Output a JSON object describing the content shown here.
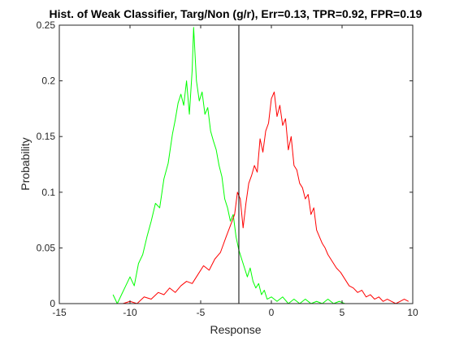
{
  "chart_data": {
    "type": "line",
    "title": "Hist. of Weak Classifier, Targ/Non (g/r), Err=0.13, TPR=0.92, FPR=0.19",
    "xlabel": "Response",
    "ylabel": "Probability",
    "xlim": [
      -15,
      10
    ],
    "ylim": [
      0,
      0.25
    ],
    "xticks": [
      -15,
      -10,
      -5,
      0,
      5,
      10
    ],
    "xtick_labels": [
      "-15",
      "-10",
      "-5",
      "0",
      "5",
      "10"
    ],
    "yticks": [
      0,
      0.05,
      0.1,
      0.15,
      0.2,
      0.25
    ],
    "ytick_labels": [
      "0",
      "0.05",
      "0.1",
      "0.15",
      "0.2",
      "0.25"
    ],
    "grid": false,
    "legend": "none",
    "threshold": {
      "x": -2.3,
      "color": "#000000"
    },
    "series": [
      {
        "key": "target",
        "color": "#00ff00",
        "points": [
          [
            -11.2,
            0.008
          ],
          [
            -10.9,
            0.0
          ],
          [
            -10.6,
            0.008
          ],
          [
            -10.3,
            0.016
          ],
          [
            -10.0,
            0.024
          ],
          [
            -9.7,
            0.016
          ],
          [
            -9.4,
            0.036
          ],
          [
            -9.1,
            0.044
          ],
          [
            -8.8,
            0.06
          ],
          [
            -8.5,
            0.074
          ],
          [
            -8.2,
            0.09
          ],
          [
            -7.9,
            0.086
          ],
          [
            -7.6,
            0.112
          ],
          [
            -7.3,
            0.126
          ],
          [
            -7.0,
            0.152
          ],
          [
            -6.8,
            0.165
          ],
          [
            -6.6,
            0.18
          ],
          [
            -6.4,
            0.188
          ],
          [
            -6.2,
            0.178
          ],
          [
            -6.0,
            0.2
          ],
          [
            -5.8,
            0.17
          ],
          [
            -5.6,
            0.21
          ],
          [
            -5.5,
            0.248
          ],
          [
            -5.3,
            0.2
          ],
          [
            -5.1,
            0.182
          ],
          [
            -4.9,
            0.19
          ],
          [
            -4.7,
            0.17
          ],
          [
            -4.5,
            0.176
          ],
          [
            -4.3,
            0.155
          ],
          [
            -4.1,
            0.146
          ],
          [
            -3.9,
            0.138
          ],
          [
            -3.7,
            0.124
          ],
          [
            -3.5,
            0.114
          ],
          [
            -3.3,
            0.094
          ],
          [
            -3.1,
            0.086
          ],
          [
            -2.9,
            0.074
          ],
          [
            -2.7,
            0.08
          ],
          [
            -2.5,
            0.06
          ],
          [
            -2.3,
            0.048
          ],
          [
            -2.1,
            0.04
          ],
          [
            -1.9,
            0.032
          ],
          [
            -1.7,
            0.024
          ],
          [
            -1.5,
            0.032
          ],
          [
            -1.3,
            0.02
          ],
          [
            -1.1,
            0.014
          ],
          [
            -0.9,
            0.018
          ],
          [
            -0.7,
            0.008
          ],
          [
            -0.5,
            0.012
          ],
          [
            -0.3,
            0.004
          ],
          [
            0.0,
            0.006
          ],
          [
            0.4,
            0.002
          ],
          [
            0.8,
            0.006
          ],
          [
            1.2,
            0.0
          ],
          [
            1.6,
            0.004
          ],
          [
            2.0,
            0.0
          ],
          [
            2.4,
            0.004
          ],
          [
            2.8,
            0.0
          ],
          [
            3.2,
            0.002
          ],
          [
            3.6,
            0.0
          ],
          [
            4.0,
            0.004
          ],
          [
            4.4,
            0.0
          ],
          [
            4.8,
            0.002
          ],
          [
            5.2,
            0.0
          ],
          [
            5.6,
            0.0
          ]
        ]
      },
      {
        "key": "nontarget",
        "color": "#ff0000",
        "points": [
          [
            -10.5,
            0.0
          ],
          [
            -10.0,
            0.002
          ],
          [
            -9.5,
            0.0
          ],
          [
            -9.0,
            0.006
          ],
          [
            -8.5,
            0.004
          ],
          [
            -8.0,
            0.01
          ],
          [
            -7.6,
            0.008
          ],
          [
            -7.2,
            0.014
          ],
          [
            -6.8,
            0.01
          ],
          [
            -6.4,
            0.016
          ],
          [
            -6.0,
            0.02
          ],
          [
            -5.6,
            0.018
          ],
          [
            -5.2,
            0.026
          ],
          [
            -4.8,
            0.034
          ],
          [
            -4.4,
            0.03
          ],
          [
            -4.0,
            0.04
          ],
          [
            -3.6,
            0.046
          ],
          [
            -3.2,
            0.06
          ],
          [
            -2.9,
            0.07
          ],
          [
            -2.6,
            0.08
          ],
          [
            -2.4,
            0.1
          ],
          [
            -2.2,
            0.094
          ],
          [
            -2.0,
            0.068
          ],
          [
            -1.8,
            0.09
          ],
          [
            -1.6,
            0.108
          ],
          [
            -1.4,
            0.115
          ],
          [
            -1.2,
            0.124
          ],
          [
            -1.0,
            0.118
          ],
          [
            -0.8,
            0.148
          ],
          [
            -0.6,
            0.136
          ],
          [
            -0.4,
            0.155
          ],
          [
            -0.2,
            0.162
          ],
          [
            0.0,
            0.184
          ],
          [
            0.2,
            0.19
          ],
          [
            0.4,
            0.168
          ],
          [
            0.6,
            0.178
          ],
          [
            0.8,
            0.16
          ],
          [
            1.0,
            0.166
          ],
          [
            1.2,
            0.138
          ],
          [
            1.4,
            0.15
          ],
          [
            1.6,
            0.124
          ],
          [
            1.8,
            0.12
          ],
          [
            2.0,
            0.108
          ],
          [
            2.2,
            0.104
          ],
          [
            2.4,
            0.094
          ],
          [
            2.6,
            0.098
          ],
          [
            2.8,
            0.08
          ],
          [
            3.0,
            0.086
          ],
          [
            3.2,
            0.066
          ],
          [
            3.4,
            0.06
          ],
          [
            3.6,
            0.054
          ],
          [
            3.8,
            0.05
          ],
          [
            4.0,
            0.044
          ],
          [
            4.3,
            0.038
          ],
          [
            4.6,
            0.032
          ],
          [
            4.9,
            0.028
          ],
          [
            5.2,
            0.022
          ],
          [
            5.5,
            0.016
          ],
          [
            5.8,
            0.014
          ],
          [
            6.1,
            0.01
          ],
          [
            6.4,
            0.012
          ],
          [
            6.7,
            0.006
          ],
          [
            7.0,
            0.008
          ],
          [
            7.3,
            0.004
          ],
          [
            7.6,
            0.006
          ],
          [
            7.9,
            0.002
          ],
          [
            8.2,
            0.004
          ],
          [
            8.5,
            0.002
          ],
          [
            8.8,
            0.0
          ],
          [
            9.1,
            0.002
          ],
          [
            9.4,
            0.004
          ],
          [
            9.7,
            0.002
          ]
        ]
      }
    ]
  }
}
